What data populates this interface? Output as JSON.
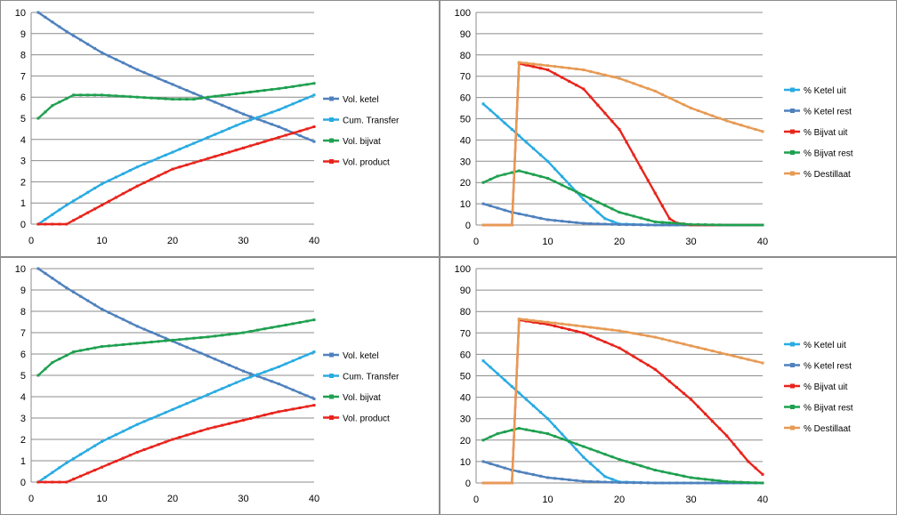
{
  "chart_data": [
    {
      "type": "line",
      "title": "",
      "xlabel": "",
      "ylabel": "",
      "xlim": [
        0,
        40
      ],
      "ylim": [
        0,
        10
      ],
      "xticks": [
        0,
        10,
        20,
        30,
        40
      ],
      "yticks": [
        0,
        1,
        2,
        3,
        4,
        5,
        6,
        7,
        8,
        9,
        10
      ],
      "grid": true,
      "legend_position": "right",
      "series": [
        {
          "name": "Vol. ketel",
          "color": "#4f81bd",
          "x": [
            1,
            5,
            10,
            15,
            20,
            25,
            30,
            35,
            40
          ],
          "y": [
            10,
            9.1,
            8.1,
            7.3,
            6.6,
            5.9,
            5.2,
            4.6,
            3.9
          ]
        },
        {
          "name": "Cum. Transfer",
          "color": "#29abe2",
          "x": [
            1,
            5,
            10,
            15,
            20,
            25,
            30,
            35,
            40
          ],
          "y": [
            0,
            0.9,
            1.9,
            2.7,
            3.4,
            4.1,
            4.8,
            5.4,
            6.1
          ]
        },
        {
          "name": "Vol. bijvat",
          "color": "#1fa050",
          "x": [
            1,
            3,
            6,
            10,
            15,
            20,
            23,
            25,
            30,
            35,
            40
          ],
          "y": [
            5,
            5.6,
            6.1,
            6.1,
            6.0,
            5.9,
            5.9,
            6.0,
            6.2,
            6.4,
            6.65
          ]
        },
        {
          "name": "Vol. product",
          "color": "#e8241c",
          "x": [
            1,
            2,
            3,
            4,
            5,
            10,
            15,
            20,
            25,
            30,
            35,
            40
          ],
          "y": [
            0,
            0,
            0,
            0,
            0,
            0.9,
            1.8,
            2.6,
            3.1,
            3.6,
            4.1,
            4.6
          ]
        }
      ]
    },
    {
      "type": "line",
      "title": "",
      "xlabel": "",
      "ylabel": "",
      "xlim": [
        0,
        40
      ],
      "ylim": [
        0,
        100
      ],
      "xticks": [
        0,
        10,
        20,
        30,
        40
      ],
      "yticks": [
        0,
        10,
        20,
        30,
        40,
        50,
        60,
        70,
        80,
        90,
        100
      ],
      "grid": true,
      "legend_position": "right",
      "series": [
        {
          "name": "% Ketel uit",
          "color": "#29abe2",
          "x": [
            1,
            5,
            10,
            15,
            18,
            20,
            25,
            30,
            35,
            40
          ],
          "y": [
            57,
            45,
            30,
            12,
            3,
            0.5,
            0,
            0,
            0,
            0
          ]
        },
        {
          "name": "% Ketel rest",
          "color": "#4f81bd",
          "x": [
            1,
            5,
            10,
            15,
            20,
            25,
            30,
            35,
            40
          ],
          "y": [
            10,
            6,
            2.5,
            0.8,
            0.2,
            0,
            0,
            0,
            0
          ]
        },
        {
          "name": "% Bijvat uit",
          "color": "#e8241c",
          "x": [
            1,
            4,
            5,
            6,
            10,
            15,
            20,
            23,
            25,
            27,
            28,
            30,
            35,
            40
          ],
          "y": [
            0,
            0,
            0,
            76,
            73,
            64,
            45,
            27,
            15,
            3,
            1,
            0,
            0,
            0
          ]
        },
        {
          "name": "% Bijvat rest",
          "color": "#1fa050",
          "x": [
            1,
            3,
            6,
            10,
            15,
            20,
            25,
            30,
            35,
            40
          ],
          "y": [
            20,
            23,
            25.5,
            22,
            14,
            6,
            1.5,
            0.3,
            0,
            0
          ]
        },
        {
          "name": "% Destillaat",
          "color": "#e79a54",
          "x": [
            1,
            4,
            5,
            6,
            10,
            15,
            20,
            25,
            30,
            35,
            40
          ],
          "y": [
            0,
            0,
            0,
            76.5,
            75,
            73,
            69,
            63,
            55,
            49,
            44
          ]
        }
      ]
    },
    {
      "type": "line",
      "title": "",
      "xlabel": "",
      "ylabel": "",
      "xlim": [
        0,
        40
      ],
      "ylim": [
        0,
        10
      ],
      "xticks": [
        0,
        10,
        20,
        30,
        40
      ],
      "yticks": [
        0,
        1,
        2,
        3,
        4,
        5,
        6,
        7,
        8,
        9,
        10
      ],
      "grid": true,
      "legend_position": "right",
      "series": [
        {
          "name": "Vol. ketel",
          "color": "#4f81bd",
          "x": [
            1,
            5,
            10,
            15,
            20,
            25,
            30,
            35,
            40
          ],
          "y": [
            10,
            9.1,
            8.1,
            7.3,
            6.6,
            5.9,
            5.2,
            4.6,
            3.9
          ]
        },
        {
          "name": "Cum. Transfer",
          "color": "#29abe2",
          "x": [
            1,
            5,
            10,
            15,
            20,
            25,
            30,
            35,
            40
          ],
          "y": [
            0,
            0.9,
            1.9,
            2.7,
            3.4,
            4.1,
            4.8,
            5.4,
            6.1
          ]
        },
        {
          "name": "Vol. bijvat",
          "color": "#1fa050",
          "x": [
            1,
            3,
            6,
            10,
            15,
            20,
            25,
            30,
            35,
            40
          ],
          "y": [
            5,
            5.6,
            6.1,
            6.35,
            6.5,
            6.65,
            6.8,
            7.0,
            7.3,
            7.6
          ]
        },
        {
          "name": "Vol. product",
          "color": "#e8241c",
          "x": [
            1,
            2,
            3,
            4,
            5,
            10,
            15,
            20,
            25,
            30,
            35,
            40
          ],
          "y": [
            0,
            0,
            0,
            0,
            0,
            0.7,
            1.4,
            2.0,
            2.5,
            2.9,
            3.3,
            3.6
          ]
        }
      ]
    },
    {
      "type": "line",
      "title": "",
      "xlabel": "",
      "ylabel": "",
      "xlim": [
        0,
        40
      ],
      "ylim": [
        0,
        100
      ],
      "xticks": [
        0,
        10,
        20,
        30,
        40
      ],
      "yticks": [
        0,
        10,
        20,
        30,
        40,
        50,
        60,
        70,
        80,
        90,
        100
      ],
      "grid": true,
      "legend_position": "right",
      "series": [
        {
          "name": "% Ketel uit",
          "color": "#29abe2",
          "x": [
            1,
            5,
            10,
            15,
            18,
            20,
            25,
            30,
            35,
            40
          ],
          "y": [
            57,
            45,
            30,
            12,
            3,
            0.5,
            0,
            0,
            0,
            0
          ]
        },
        {
          "name": "% Ketel rest",
          "color": "#4f81bd",
          "x": [
            1,
            5,
            10,
            15,
            20,
            25,
            30,
            35,
            40
          ],
          "y": [
            10,
            6,
            2.5,
            0.8,
            0.2,
            0,
            0,
            0,
            0
          ]
        },
        {
          "name": "% Bijvat uit",
          "color": "#e8241c",
          "x": [
            1,
            4,
            5,
            6,
            10,
            15,
            20,
            25,
            30,
            35,
            38,
            40
          ],
          "y": [
            0,
            0,
            0,
            76,
            74,
            70,
            63,
            53,
            39,
            22,
            10,
            4
          ]
        },
        {
          "name": "% Bijvat rest",
          "color": "#1fa050",
          "x": [
            1,
            3,
            6,
            10,
            15,
            20,
            25,
            30,
            35,
            40
          ],
          "y": [
            20,
            23,
            25.5,
            23,
            17,
            11,
            6,
            2.5,
            0.6,
            0
          ]
        },
        {
          "name": "% Destillaat",
          "color": "#e79a54",
          "x": [
            1,
            4,
            5,
            6,
            10,
            15,
            20,
            25,
            30,
            35,
            40
          ],
          "y": [
            0,
            0,
            0,
            76.5,
            75,
            73,
            71,
            68,
            64,
            60,
            56
          ]
        }
      ]
    }
  ]
}
